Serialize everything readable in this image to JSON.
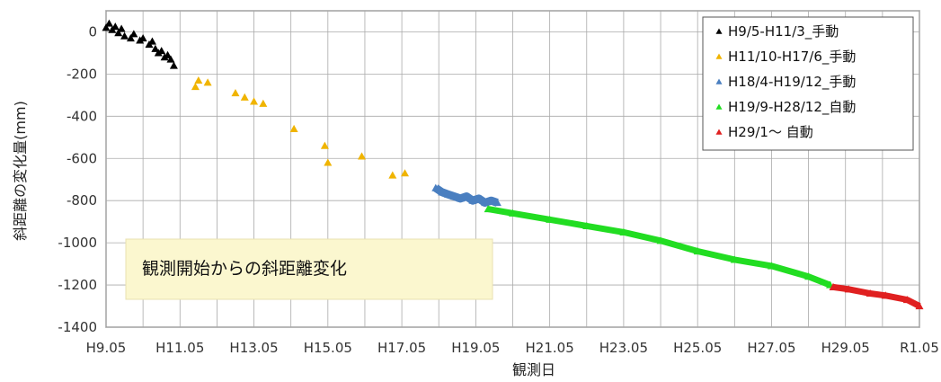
{
  "chart_data": {
    "type": "scatter",
    "title": "",
    "xlabel": "観測日",
    "ylabel": "斜距離の変化量(mm)",
    "x_ticks": [
      "H9.05",
      "H11.05",
      "H13.05",
      "H15.05",
      "H17.05",
      "H19.05",
      "H21.05",
      "H23.05",
      "H25.05",
      "H27.05",
      "H29.05",
      "R1.05"
    ],
    "x_range": [
      "1997-05",
      "2019-05"
    ],
    "y_ticks": [
      "0",
      "-200",
      "-400",
      "-600",
      "-800",
      "-1000",
      "-1200",
      "-1400"
    ],
    "ylim": [
      -1400,
      100
    ],
    "grid": true,
    "legend_position": "top-right",
    "annotation": "観測開始からの斜距離変化",
    "series": [
      {
        "name": "H9/5-H11/3_手動",
        "color": "#000000",
        "points": [
          [
            "1997-05",
            20
          ],
          [
            "1997-06",
            40
          ],
          [
            "1997-07",
            10
          ],
          [
            "1997-08",
            25
          ],
          [
            "1997-09",
            -5
          ],
          [
            "1997-10",
            15
          ],
          [
            "1997-11",
            -20
          ],
          [
            "1998-01",
            -30
          ],
          [
            "1998-02",
            -10
          ],
          [
            "1998-04",
            -40
          ],
          [
            "1998-05",
            -30
          ],
          [
            "1998-07",
            -60
          ],
          [
            "1998-08",
            -45
          ],
          [
            "1998-09",
            -80
          ],
          [
            "1998-10",
            -100
          ],
          [
            "1998-11",
            -90
          ],
          [
            "1998-12",
            -120
          ],
          [
            "1999-01",
            -110
          ],
          [
            "1999-02",
            -130
          ],
          [
            "1999-03",
            -160
          ]
        ]
      },
      {
        "name": "H11/10-H17/6_手動",
        "color": "#f0b400",
        "points": [
          [
            "1999-10",
            -260
          ],
          [
            "1999-11",
            -230
          ],
          [
            "2000-02",
            -240
          ],
          [
            "2000-11",
            -290
          ],
          [
            "2001-02",
            -310
          ],
          [
            "2001-05",
            -330
          ],
          [
            "2001-08",
            -340
          ],
          [
            "2002-06",
            -460
          ],
          [
            "2003-04",
            -540
          ],
          [
            "2003-05",
            -620
          ],
          [
            "2004-04",
            -590
          ],
          [
            "2005-02",
            -680
          ],
          [
            "2005-06",
            -670
          ]
        ]
      },
      {
        "name": "H18/4-H19/12_手動",
        "color": "#4a7fc0",
        "points": [
          [
            "2006-04",
            -740
          ],
          [
            "2006-06",
            -760
          ],
          [
            "2006-08",
            -770
          ],
          [
            "2006-10",
            -780
          ],
          [
            "2006-12",
            -790
          ],
          [
            "2007-02",
            -780
          ],
          [
            "2007-04",
            -800
          ],
          [
            "2007-06",
            -790
          ],
          [
            "2007-08",
            -810
          ],
          [
            "2007-10",
            -800
          ],
          [
            "2007-12",
            -810
          ]
        ]
      },
      {
        "name": "H19/9-H28/12_自動",
        "color": "#22dd22",
        "points": [
          [
            "2007-09",
            -840
          ],
          [
            "2008-05",
            -860
          ],
          [
            "2009-05",
            -890
          ],
          [
            "2010-05",
            -920
          ],
          [
            "2011-05",
            -950
          ],
          [
            "2012-05",
            -990
          ],
          [
            "2013-05",
            -1040
          ],
          [
            "2014-05",
            -1080
          ],
          [
            "2015-05",
            -1110
          ],
          [
            "2016-05",
            -1160
          ],
          [
            "2016-12",
            -1200
          ]
        ]
      },
      {
        "name": "H29/1～ 自動",
        "color": "#e02020",
        "points": [
          [
            "2017-01",
            -1210
          ],
          [
            "2017-06",
            -1220
          ],
          [
            "2018-01",
            -1240
          ],
          [
            "2018-06",
            -1250
          ],
          [
            "2019-01",
            -1270
          ],
          [
            "2019-05",
            -1300
          ]
        ]
      }
    ]
  }
}
